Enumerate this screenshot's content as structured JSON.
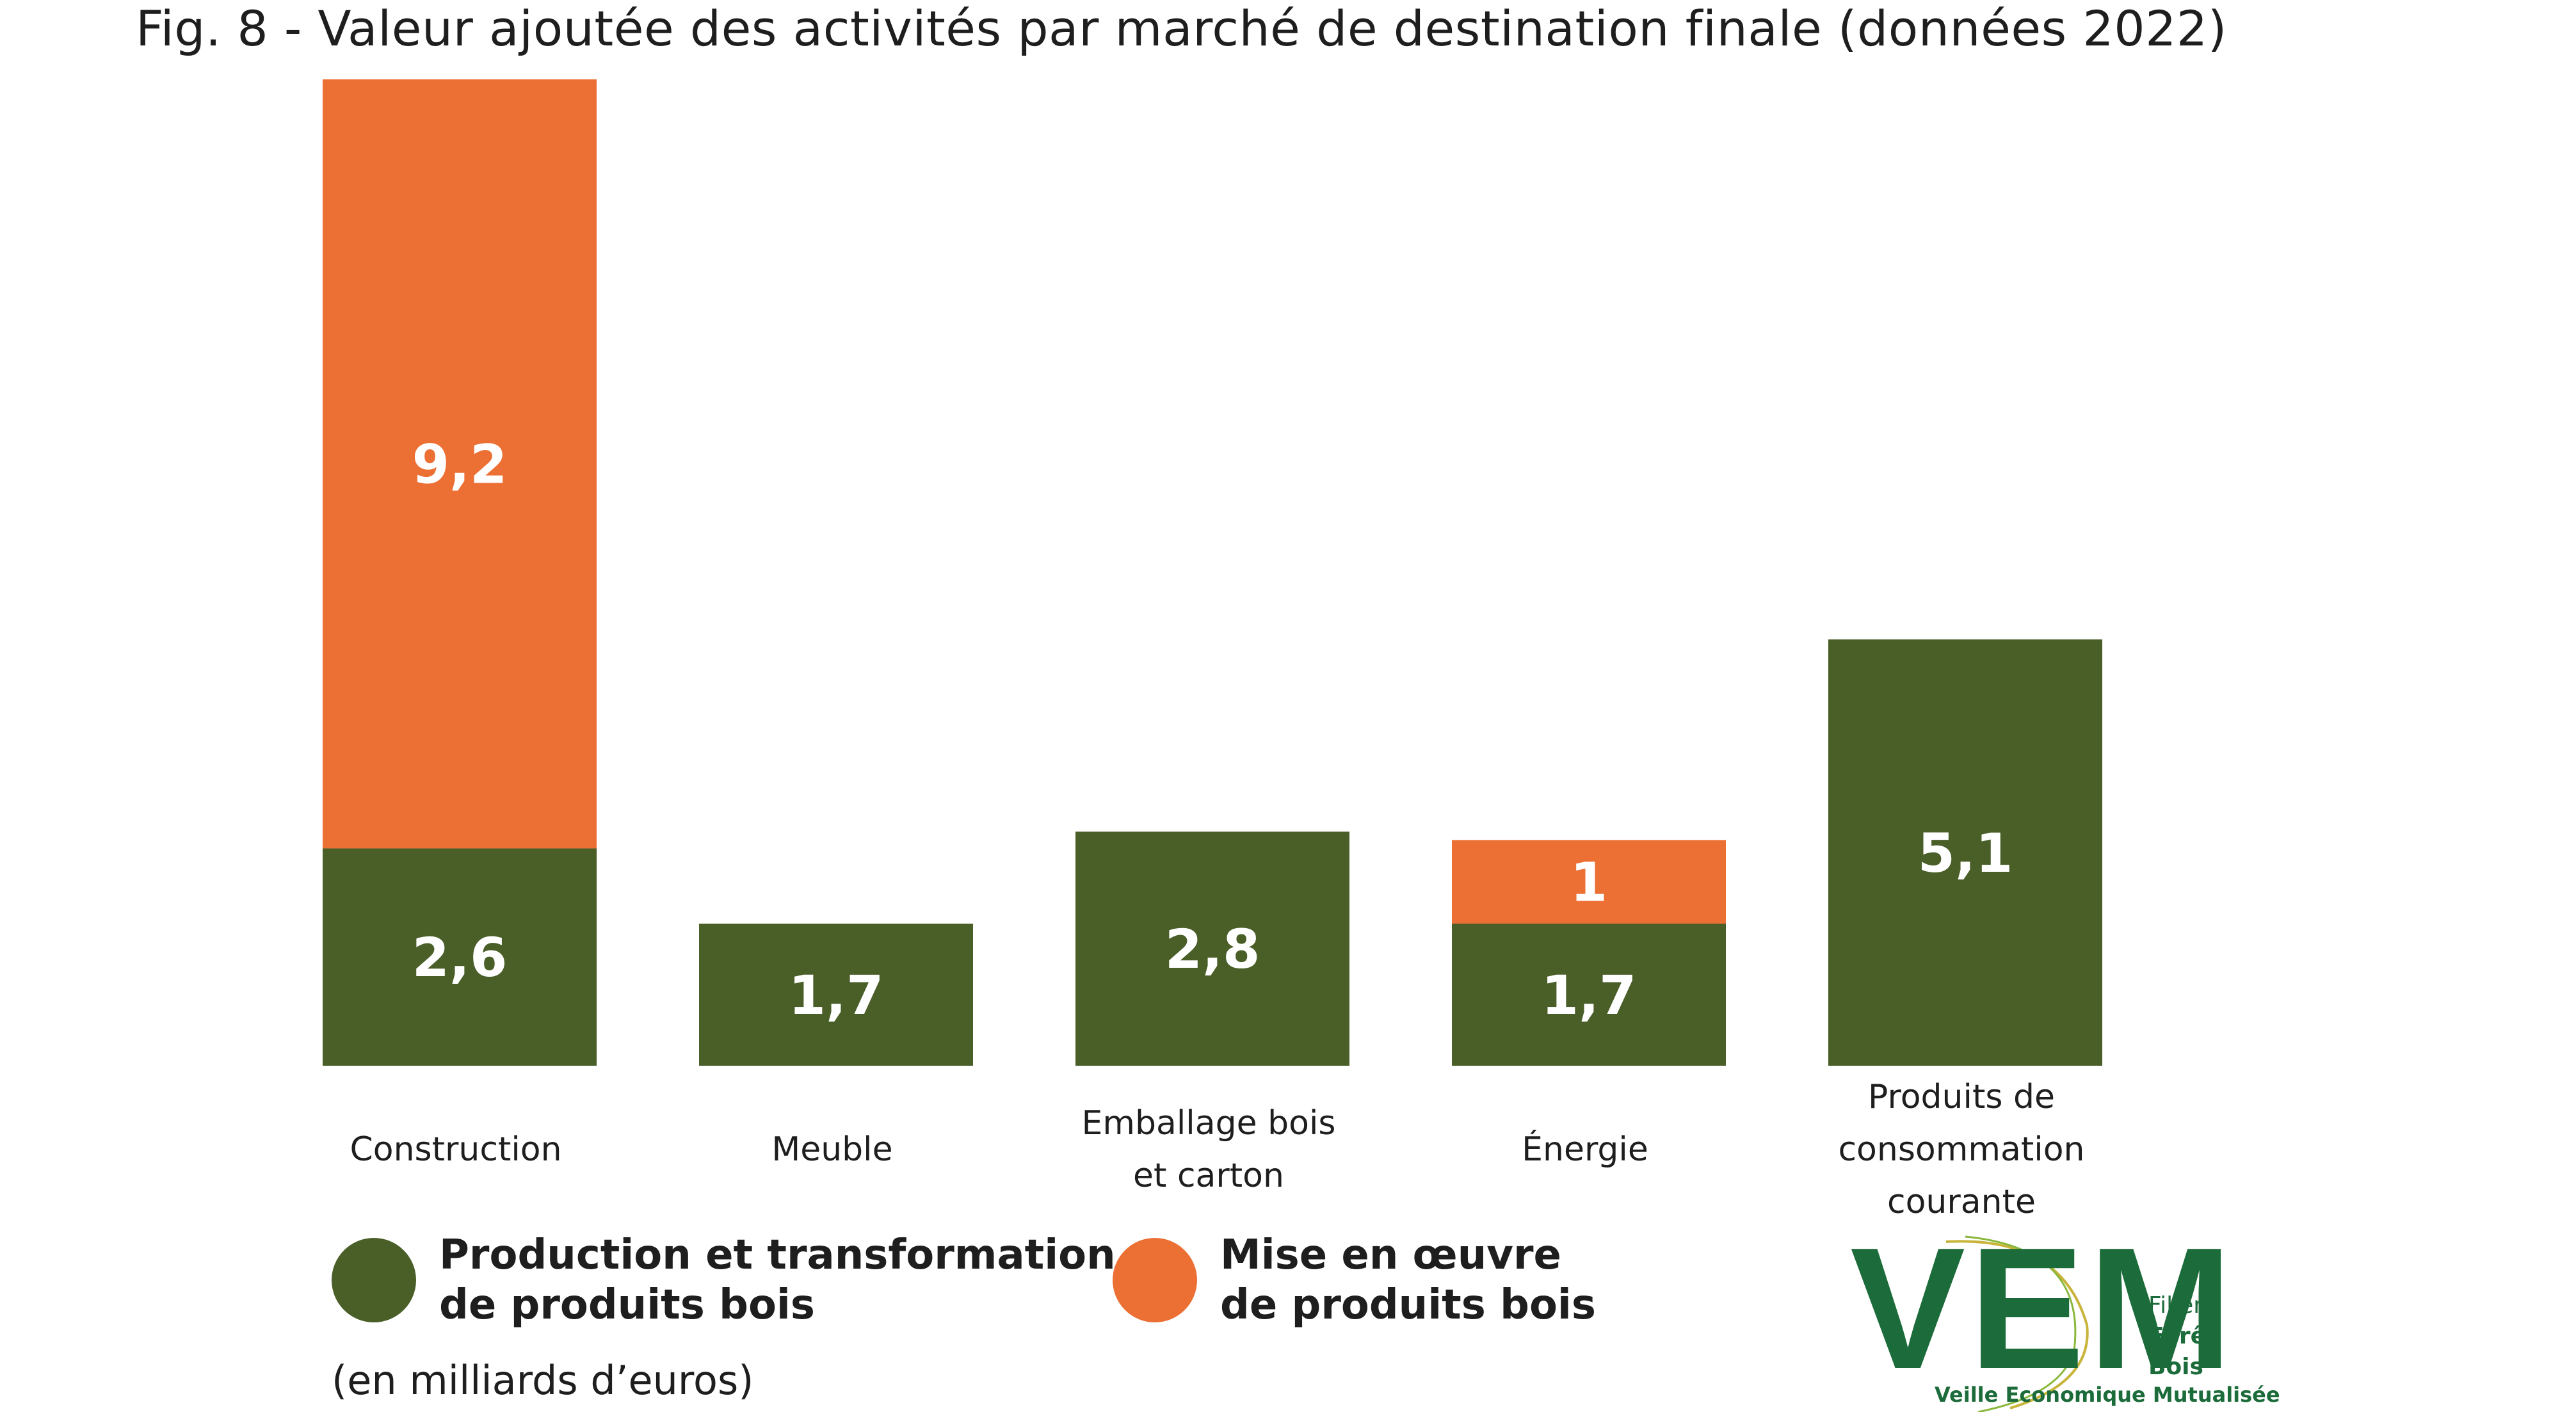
{
  "title": "Fig. 8 - Valeur ajoutée des activités par marché de destination finale (données 2022)",
  "unit_note": "(en milliards d’euros)",
  "colors": {
    "production": "#4a5e28",
    "mise_en_oeuvre": "#ec6f34",
    "logo": "#1c6b3a"
  },
  "legend": [
    {
      "label": "Production et transformation\nde produits bois",
      "color": "#4a5e28"
    },
    {
      "label": "Mise en œuvre\nde produits bois",
      "color": "#ec6f34"
    }
  ],
  "logo": {
    "letters": "VEM",
    "side": [
      "Filière",
      "Forêt",
      "Bois"
    ],
    "tagline": "Veille Economique Mutualisée"
  },
  "chart_data": {
    "type": "bar",
    "stacked": true,
    "categories": [
      [
        "Construction"
      ],
      [
        "Meuble"
      ],
      [
        "Emballage bois",
        "et carton"
      ],
      [
        "Énergie"
      ],
      [
        "Produits de",
        "consommation",
        "courante"
      ]
    ],
    "series": [
      {
        "name": "Production et transformation de produits bois",
        "values": [
          2.6,
          1.7,
          2.8,
          1.7,
          5.1
        ],
        "labels": [
          "2,6",
          "1,7",
          "2,8",
          "1,7",
          "5,1"
        ]
      },
      {
        "name": "Mise en œuvre de produits bois",
        "values": [
          9.2,
          0,
          0,
          1,
          0
        ],
        "labels": [
          "9,2",
          "",
          "",
          "1",
          ""
        ]
      }
    ],
    "ylim": [
      0,
      11.8
    ],
    "grid": false,
    "legend_position": "bottom"
  }
}
